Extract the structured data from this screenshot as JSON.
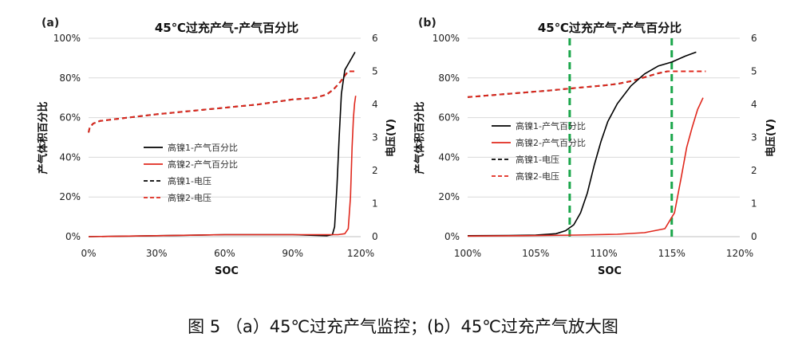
{
  "chart_data": [
    {
      "panel": "(a)",
      "type": "line",
      "title": "45℃过充产气-产气百分比",
      "xlabel": "SOC",
      "ylabel": "产气体积百分比",
      "y2label": "电压(V)",
      "xlim": [
        0,
        120
      ],
      "ylim": [
        0,
        100
      ],
      "y2lim": [
        0,
        6
      ],
      "xticks": [
        "0%",
        "30%",
        "60%",
        "90%",
        "120%"
      ],
      "yticks": [
        "0%",
        "20%",
        "40%",
        "60%",
        "80%",
        "100%"
      ],
      "y2ticks": [
        "0",
        "1",
        "2",
        "3",
        "4",
        "5",
        "6"
      ],
      "legend_position": "center-left",
      "series": [
        {
          "name": "高镍1-产气百分比",
          "axis": "y",
          "color": "#000000",
          "dash": "solid",
          "x": [
            0,
            30,
            60,
            90,
            105,
            107.5,
            108.5,
            109.5,
            110.5,
            111.5,
            113,
            115,
            116.5,
            117.5
          ],
          "y": [
            0,
            0.5,
            1,
            1,
            0.5,
            1,
            5,
            25,
            50,
            72,
            84,
            88,
            91,
            93
          ]
        },
        {
          "name": "高镍2-产气百分比",
          "axis": "y",
          "color": "#e0281d",
          "dash": "solid",
          "x": [
            0,
            30,
            60,
            90,
            110,
            113,
            114.5,
            115.5,
            116.2,
            116.8,
            117.3,
            117.8
          ],
          "y": [
            0,
            0.5,
            1,
            1,
            1,
            1.5,
            4,
            20,
            45,
            60,
            67,
            71
          ]
        },
        {
          "name": "高镍1-电压",
          "axis": "y2",
          "color": "#000000",
          "dash": "dashed",
          "x": [
            0,
            0.5,
            2,
            5,
            15,
            30,
            45,
            60,
            75,
            90,
            100,
            105,
            108,
            111,
            113,
            114.5
          ],
          "y": [
            3.15,
            3.3,
            3.42,
            3.5,
            3.58,
            3.7,
            3.8,
            3.9,
            4.0,
            4.15,
            4.2,
            4.3,
            4.45,
            4.68,
            4.87,
            5.0
          ]
        },
        {
          "name": "高镍2-电压",
          "axis": "y2",
          "color": "#e0281d",
          "dash": "dashed",
          "x": [
            0,
            0.5,
            2,
            5,
            15,
            30,
            45,
            60,
            75,
            90,
            100,
            105,
            108,
            111,
            113,
            114.5,
            116,
            118
          ],
          "y": [
            3.15,
            3.3,
            3.42,
            3.5,
            3.58,
            3.7,
            3.8,
            3.9,
            4.0,
            4.15,
            4.2,
            4.3,
            4.45,
            4.68,
            4.87,
            5.0,
            5.0,
            5.0
          ]
        }
      ]
    },
    {
      "panel": "(b)",
      "type": "line",
      "title": "45℃过充产气-产气百分比",
      "xlabel": "SOC",
      "ylabel": "产气体积百分比",
      "y2label": "电压(V)",
      "xlim": [
        100,
        120
      ],
      "ylim": [
        0,
        100
      ],
      "y2lim": [
        0,
        6
      ],
      "xticks": [
        "100%",
        "105%",
        "110%",
        "115%",
        "120%"
      ],
      "yticks": [
        "0%",
        "20%",
        "40%",
        "60%",
        "80%",
        "100%"
      ],
      "y2ticks": [
        "0",
        "1",
        "2",
        "3",
        "4",
        "5",
        "6"
      ],
      "reference_lines_x": [
        107.5,
        115
      ],
      "reference_line_color": "#1aa64a",
      "legend_position": "center-left",
      "series": [
        {
          "name": "高镍1-产气百分比",
          "axis": "y",
          "color": "#000000",
          "dash": "solid",
          "x": [
            100,
            103,
            105,
            106.5,
            107.2,
            107.8,
            108.3,
            108.8,
            109.3,
            109.8,
            110.3,
            111,
            112,
            113,
            114,
            115,
            116,
            116.8
          ],
          "y": [
            0.5,
            0.6,
            0.8,
            1.5,
            3,
            6,
            12,
            22,
            36,
            48,
            58,
            67,
            76,
            82,
            86,
            88,
            91,
            93
          ]
        },
        {
          "name": "高镍2-产气百分比",
          "axis": "y",
          "color": "#e0281d",
          "dash": "solid",
          "x": [
            100,
            104,
            108,
            111,
            113,
            114.5,
            115.2,
            115.7,
            116.1,
            116.5,
            116.9,
            117.3
          ],
          "y": [
            0.3,
            0.5,
            0.8,
            1.2,
            2,
            4,
            12,
            30,
            45,
            55,
            64,
            70
          ]
        },
        {
          "name": "高镍1-电压",
          "axis": "y2",
          "color": "#000000",
          "dash": "dashed",
          "x": [
            100,
            103,
            106,
            108,
            110,
            111,
            112,
            113,
            114,
            114.7
          ],
          "y": [
            4.22,
            4.32,
            4.42,
            4.5,
            4.57,
            4.62,
            4.7,
            4.82,
            4.94,
            5.0
          ]
        },
        {
          "name": "高镍2-电压",
          "axis": "y2",
          "color": "#e0281d",
          "dash": "dashed",
          "x": [
            100,
            103,
            106,
            108,
            110,
            111,
            112,
            113,
            114,
            114.7,
            115.5,
            116.5,
            117.5
          ],
          "y": [
            4.22,
            4.32,
            4.42,
            4.5,
            4.57,
            4.62,
            4.7,
            4.82,
            4.94,
            5.0,
            5.0,
            5.0,
            5.0
          ]
        }
      ]
    }
  ],
  "caption": "图 5 （a）45℃过充产气监控；(b）45℃过充产气放大图"
}
